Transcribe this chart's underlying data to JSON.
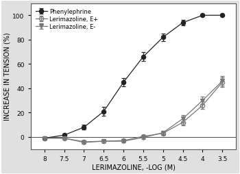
{
  "x_ticks": [
    8.0,
    7.5,
    7.0,
    6.5,
    6.0,
    5.5,
    5.0,
    4.5,
    4.0,
    3.5
  ],
  "phenylephrine": {
    "x": [
      8.0,
      7.5,
      7.0,
      6.5,
      6.0,
      5.5,
      5.0,
      4.5,
      4.0,
      3.5
    ],
    "y": [
      -1.0,
      1.5,
      8.0,
      21.0,
      45.0,
      66.0,
      82.0,
      94.0,
      100.0,
      100.0
    ],
    "yerr": [
      1.0,
      1.5,
      2.0,
      3.5,
      3.5,
      3.5,
      3.0,
      2.5,
      0.5,
      0.5
    ],
    "label": "Phenylephrine",
    "marker": "o",
    "fillstyle": "full",
    "color": "#222222",
    "linestyle": "-"
  },
  "lerimazoline_ep": {
    "x": [
      8.0,
      7.5,
      7.0,
      6.5,
      6.0,
      5.5,
      5.0,
      4.5,
      4.0,
      3.5
    ],
    "y": [
      -1.0,
      -1.0,
      -4.0,
      -3.5,
      -3.0,
      0.5,
      3.0,
      12.0,
      26.0,
      45.0
    ],
    "yerr": [
      0.5,
      0.5,
      1.0,
      1.0,
      1.0,
      1.0,
      1.5,
      2.5,
      3.0,
      4.0
    ],
    "label": "Lerimazoline, E+",
    "marker": "o",
    "fillstyle": "none",
    "color": "#777777",
    "linestyle": "-"
  },
  "lerimazoline_em": {
    "x": [
      8.0,
      7.5,
      7.0,
      6.5,
      6.0,
      5.5,
      5.0,
      4.5,
      4.0,
      3.5
    ],
    "y": [
      -1.0,
      -1.0,
      -4.5,
      -3.5,
      -3.5,
      -0.5,
      3.5,
      15.0,
      30.0,
      46.0
    ],
    "yerr": [
      0.5,
      0.5,
      1.0,
      1.0,
      1.0,
      1.0,
      1.5,
      3.0,
      3.0,
      4.0
    ],
    "label": "Lerimazoline, E-",
    "marker": "v",
    "fillstyle": "full",
    "color": "#777777",
    "linestyle": "-"
  },
  "xlabel": "LERIMAZOLINE, -LOG (M)",
  "ylabel": "INCREASE IN TENSION (%)",
  "ylim": [
    -10,
    110
  ],
  "yticks": [
    0,
    20,
    40,
    60,
    80,
    100
  ],
  "background_color": "#e0e0e0",
  "plot_bg": "#ffffff",
  "border_color": "#999999"
}
